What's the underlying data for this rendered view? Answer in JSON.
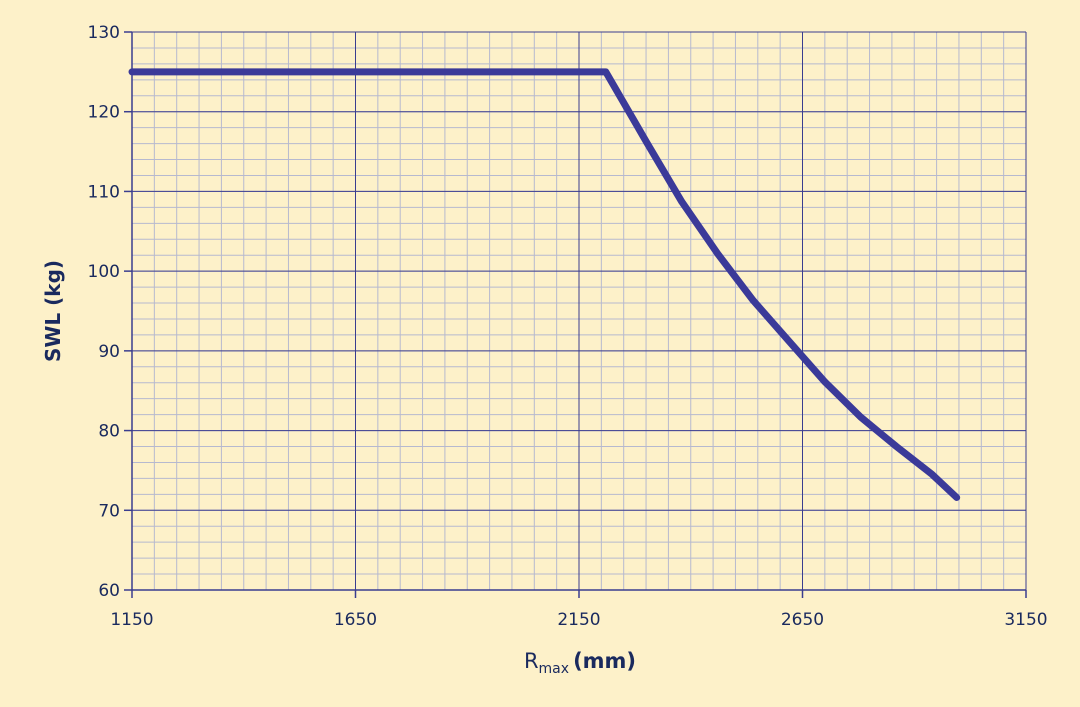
{
  "colors": {
    "background": "#fdf1c9",
    "grid_major": "#3a3d8f",
    "grid_minor": "#b6b9cf",
    "axis_text": "#1a2a5e",
    "series_line": "#3b3a99"
  },
  "chart_data": {
    "type": "line",
    "title": "",
    "xlabel_main": "R",
    "xlabel_sub": "max",
    "xlabel_unit": "(mm)",
    "ylabel": "SWL (kg)",
    "xlim": [
      1150,
      3150
    ],
    "ylim": [
      60,
      130
    ],
    "x_ticks": [
      1150,
      1650,
      2150,
      2650,
      3150
    ],
    "y_ticks": [
      60,
      70,
      80,
      90,
      100,
      110,
      120,
      130
    ],
    "grid": true,
    "series": [
      {
        "x": [
          1150,
          1650,
          2150,
          2210,
          2300,
          2380,
          2460,
          2540,
          2620,
          2700,
          2780,
          2860,
          2940,
          2995
        ],
        "y": [
          125,
          125,
          125,
          125,
          116.3,
          108.7,
          102.2,
          96.3,
          91.2,
          86.1,
          81.7,
          78.0,
          74.5,
          71.6
        ]
      }
    ]
  }
}
